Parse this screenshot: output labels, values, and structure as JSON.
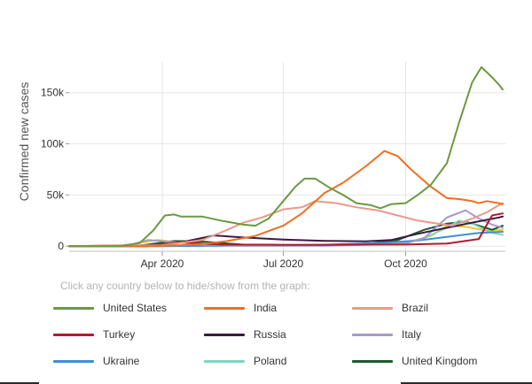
{
  "instructions": "Click any country below to hide/show from the graph:",
  "chart_data": {
    "type": "line",
    "ylabel": "Confirmed new cases",
    "xlabel": "",
    "ylim": [
      -5000,
      180000
    ],
    "xlim": [
      "2020-01-22",
      "2020-12-15"
    ],
    "grid": true,
    "legend_position": "bottom",
    "y_ticks": [
      {
        "value": 0,
        "label": "0"
      },
      {
        "value": 50000,
        "label": "50k"
      },
      {
        "value": 100000,
        "label": "100k"
      },
      {
        "value": 150000,
        "label": "150k"
      }
    ],
    "x_ticks": [
      {
        "date": "2020-04-01",
        "label": "Apr 2020"
      },
      {
        "date": "2020-07-01",
        "label": "Jul 2020"
      },
      {
        "date": "2020-10-01",
        "label": "Oct 2020"
      }
    ],
    "series": [
      {
        "name": "United States",
        "color": "#6a9a3f",
        "points": [
          [
            "2020-01-22",
            0
          ],
          [
            "2020-03-01",
            0
          ],
          [
            "2020-03-15",
            3000
          ],
          [
            "2020-03-25",
            15000
          ],
          [
            "2020-04-03",
            30000
          ],
          [
            "2020-04-10",
            31000
          ],
          [
            "2020-04-15",
            29000
          ],
          [
            "2020-05-01",
            29000
          ],
          [
            "2020-05-15",
            25000
          ],
          [
            "2020-06-01",
            21000
          ],
          [
            "2020-06-10",
            20000
          ],
          [
            "2020-06-20",
            27000
          ],
          [
            "2020-07-01",
            44000
          ],
          [
            "2020-07-10",
            58000
          ],
          [
            "2020-07-17",
            66000
          ],
          [
            "2020-07-25",
            66000
          ],
          [
            "2020-08-05",
            57000
          ],
          [
            "2020-08-15",
            50000
          ],
          [
            "2020-08-25",
            42000
          ],
          [
            "2020-09-05",
            40000
          ],
          [
            "2020-09-12",
            37000
          ],
          [
            "2020-09-20",
            41000
          ],
          [
            "2020-10-01",
            42000
          ],
          [
            "2020-10-10",
            50000
          ],
          [
            "2020-10-20",
            60000
          ],
          [
            "2020-11-01",
            81000
          ],
          [
            "2020-11-10",
            120000
          ],
          [
            "2020-11-20",
            160000
          ],
          [
            "2020-11-27",
            175000
          ],
          [
            "2020-12-01",
            170000
          ],
          [
            "2020-12-05",
            165000
          ],
          [
            "2020-12-10",
            158000
          ],
          [
            "2020-12-13",
            153000
          ]
        ]
      },
      {
        "name": "India",
        "color": "#f06e1f",
        "points": [
          [
            "2020-01-22",
            0
          ],
          [
            "2020-03-20",
            0
          ],
          [
            "2020-04-15",
            1000
          ],
          [
            "2020-05-01",
            2000
          ],
          [
            "2020-05-20",
            5000
          ],
          [
            "2020-06-10",
            10000
          ],
          [
            "2020-07-01",
            20000
          ],
          [
            "2020-07-15",
            32000
          ],
          [
            "2020-08-01",
            52000
          ],
          [
            "2020-08-15",
            62000
          ],
          [
            "2020-09-01",
            78000
          ],
          [
            "2020-09-15",
            93000
          ],
          [
            "2020-09-25",
            88000
          ],
          [
            "2020-10-05",
            75000
          ],
          [
            "2020-10-20",
            58000
          ],
          [
            "2020-11-01",
            47000
          ],
          [
            "2020-11-10",
            46000
          ],
          [
            "2020-11-20",
            44000
          ],
          [
            "2020-11-25",
            42000
          ],
          [
            "2020-12-01",
            44000
          ],
          [
            "2020-12-10",
            42000
          ],
          [
            "2020-12-13",
            41000
          ]
        ]
      },
      {
        "name": "Brazil",
        "color": "#e69a8b",
        "points": [
          [
            "2020-01-22",
            0
          ],
          [
            "2020-04-01",
            1000
          ],
          [
            "2020-05-01",
            6000
          ],
          [
            "2020-05-20",
            16000
          ],
          [
            "2020-06-01",
            23000
          ],
          [
            "2020-06-15",
            28000
          ],
          [
            "2020-07-01",
            36000
          ],
          [
            "2020-07-15",
            38000
          ],
          [
            "2020-07-25",
            44000
          ],
          [
            "2020-08-10",
            42000
          ],
          [
            "2020-08-25",
            38000
          ],
          [
            "2020-09-10",
            35000
          ],
          [
            "2020-09-25",
            30000
          ],
          [
            "2020-10-10",
            25000
          ],
          [
            "2020-10-25",
            22000
          ],
          [
            "2020-11-05",
            20000
          ],
          [
            "2020-11-20",
            27000
          ],
          [
            "2020-12-01",
            33000
          ],
          [
            "2020-12-10",
            40000
          ],
          [
            "2020-12-13",
            42000
          ]
        ]
      },
      {
        "name": "Turkey",
        "color": "#b01c2e",
        "points": [
          [
            "2020-01-22",
            0
          ],
          [
            "2020-03-20",
            0
          ],
          [
            "2020-04-15",
            4000
          ],
          [
            "2020-05-01",
            2500
          ],
          [
            "2020-05-15",
            1500
          ],
          [
            "2020-06-15",
            1500
          ],
          [
            "2020-07-01",
            1200
          ],
          [
            "2020-08-01",
            1200
          ],
          [
            "2020-09-01",
            1600
          ],
          [
            "2020-10-01",
            1600
          ],
          [
            "2020-11-01",
            2500
          ],
          [
            "2020-11-25",
            7000
          ],
          [
            "2020-12-05",
            30000
          ],
          [
            "2020-12-13",
            32000
          ]
        ]
      },
      {
        "name": "Russia",
        "color": "#3b1a3e",
        "points": [
          [
            "2020-01-22",
            0
          ],
          [
            "2020-04-01",
            1000
          ],
          [
            "2020-04-20",
            5000
          ],
          [
            "2020-05-10",
            10500
          ],
          [
            "2020-06-01",
            8500
          ],
          [
            "2020-07-01",
            6500
          ],
          [
            "2020-08-01",
            5200
          ],
          [
            "2020-09-01",
            4800
          ],
          [
            "2020-09-20",
            6000
          ],
          [
            "2020-10-10",
            12000
          ],
          [
            "2020-11-01",
            18000
          ],
          [
            "2020-11-20",
            23000
          ],
          [
            "2020-12-10",
            28000
          ],
          [
            "2020-12-13",
            29000
          ]
        ]
      },
      {
        "name": "Italy",
        "color": "#a899c8",
        "points": [
          [
            "2020-01-22",
            0
          ],
          [
            "2020-02-25",
            0
          ],
          [
            "2020-03-10",
            2000
          ],
          [
            "2020-03-21",
            6000
          ],
          [
            "2020-04-10",
            4000
          ],
          [
            "2020-05-01",
            1500
          ],
          [
            "2020-06-01",
            300
          ],
          [
            "2020-08-01",
            400
          ],
          [
            "2020-09-01",
            1400
          ],
          [
            "2020-10-01",
            2500
          ],
          [
            "2020-10-15",
            8000
          ],
          [
            "2020-11-01",
            28000
          ],
          [
            "2020-11-15",
            35000
          ],
          [
            "2020-11-25",
            27000
          ],
          [
            "2020-12-05",
            21000
          ],
          [
            "2020-12-13",
            18000
          ]
        ]
      },
      {
        "name": "Ukraine",
        "color": "#3d8dd9",
        "points": [
          [
            "2020-01-22",
            0
          ],
          [
            "2020-04-01",
            0
          ],
          [
            "2020-06-01",
            600
          ],
          [
            "2020-08-01",
            1500
          ],
          [
            "2020-09-10",
            3000
          ],
          [
            "2020-10-10",
            5500
          ],
          [
            "2020-11-01",
            9000
          ],
          [
            "2020-11-25",
            13000
          ],
          [
            "2020-12-13",
            14000
          ]
        ]
      },
      {
        "name": "Poland",
        "color": "#7fd6c1",
        "points": [
          [
            "2020-01-22",
            0
          ],
          [
            "2020-04-01",
            300
          ],
          [
            "2020-08-01",
            700
          ],
          [
            "2020-09-25",
            1700
          ],
          [
            "2020-10-15",
            8000
          ],
          [
            "2020-11-01",
            18000
          ],
          [
            "2020-11-10",
            25000
          ],
          [
            "2020-11-20",
            22000
          ],
          [
            "2020-12-05",
            13000
          ],
          [
            "2020-12-13",
            11000
          ]
        ]
      },
      {
        "name": "United Kingdom",
        "color": "#1b5a2c",
        "points": [
          [
            "2020-01-22",
            0
          ],
          [
            "2020-03-15",
            500
          ],
          [
            "2020-04-10",
            5000
          ],
          [
            "2020-05-01",
            4500
          ],
          [
            "2020-06-01",
            1500
          ],
          [
            "2020-08-01",
            900
          ],
          [
            "2020-09-01",
            2000
          ],
          [
            "2020-09-25",
            6000
          ],
          [
            "2020-10-15",
            16000
          ],
          [
            "2020-11-01",
            22000
          ],
          [
            "2020-11-15",
            24000
          ],
          [
            "2020-12-05",
            16000
          ],
          [
            "2020-12-13",
            20000
          ]
        ]
      },
      {
        "name": "",
        "color": "#ecc81f",
        "points": [
          [
            "2020-01-22",
            0
          ],
          [
            "2020-03-05",
            1000
          ],
          [
            "2020-03-28",
            6000
          ],
          [
            "2020-04-20",
            3000
          ],
          [
            "2020-05-15",
            1000
          ],
          [
            "2020-07-01",
            700
          ],
          [
            "2020-09-01",
            1500
          ],
          [
            "2020-10-01",
            3000
          ],
          [
            "2020-10-20",
            10000
          ],
          [
            "2020-11-01",
            20000
          ],
          [
            "2020-11-15",
            19000
          ],
          [
            "2020-12-01",
            15000
          ],
          [
            "2020-12-13",
            16000
          ]
        ]
      }
    ]
  }
}
